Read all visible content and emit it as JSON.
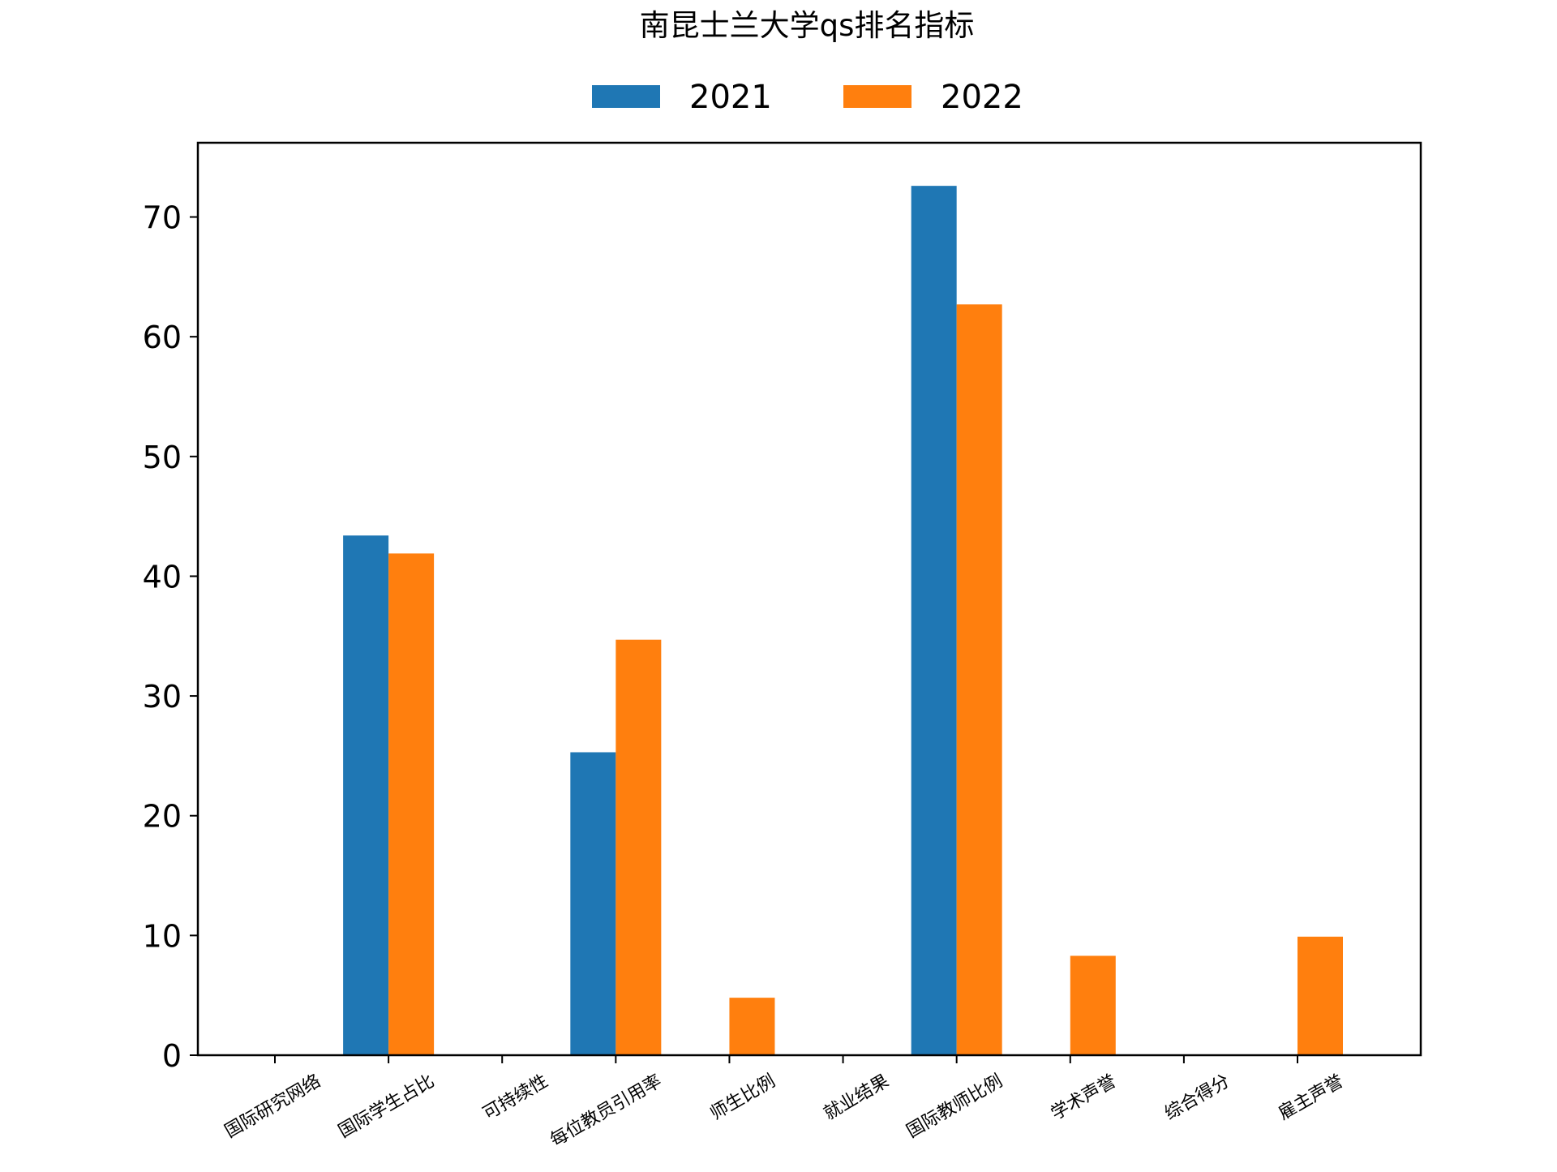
{
  "chart_data": {
    "type": "bar",
    "title": "南昆士兰大学qs排名指标",
    "xlabel": "",
    "ylabel": "",
    "categories": [
      "国际研究网络",
      "国际学生占比",
      "可持续性",
      "每位教员引用率",
      "师生比例",
      "就业结果",
      "国际教师比例",
      "学术声誉",
      "综合得分",
      "雇主声誉"
    ],
    "series": [
      {
        "name": "2021",
        "color": "#1f77b4",
        "values": [
          0,
          43.4,
          0,
          25.3,
          0,
          0,
          72.6,
          0,
          0,
          0
        ]
      },
      {
        "name": "2022",
        "color": "#ff7f0e",
        "values": [
          0,
          41.9,
          0,
          34.7,
          4.8,
          0,
          62.7,
          8.3,
          0,
          9.9
        ]
      }
    ],
    "ylim": [
      0,
      76.2
    ],
    "yticks": [
      0,
      10,
      20,
      30,
      40,
      50,
      60,
      70
    ],
    "grid": false,
    "legend_position": "top-center"
  }
}
